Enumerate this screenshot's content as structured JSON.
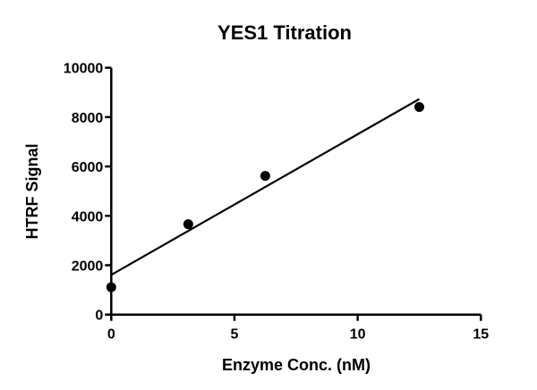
{
  "chart_data": {
    "type": "scatter",
    "title": "YES1 Titration",
    "xlabel": "Enzyme Conc. (nM)",
    "ylabel": "HTRF Signal",
    "xlim": [
      0,
      15
    ],
    "ylim": [
      0,
      10000
    ],
    "xticks": [
      0,
      5,
      10,
      15
    ],
    "yticks": [
      0,
      2000,
      4000,
      6000,
      8000,
      10000
    ],
    "grid": false,
    "points": [
      {
        "x": 0,
        "y": 1110
      },
      {
        "x": 3.125,
        "y": 3660
      },
      {
        "x": 6.25,
        "y": 5620
      },
      {
        "x": 12.5,
        "y": 8410
      }
    ],
    "fit_line": {
      "x": [
        0,
        12.5
      ],
      "y": [
        1610,
        8730
      ]
    },
    "colors": {
      "marks": "#000000"
    }
  }
}
